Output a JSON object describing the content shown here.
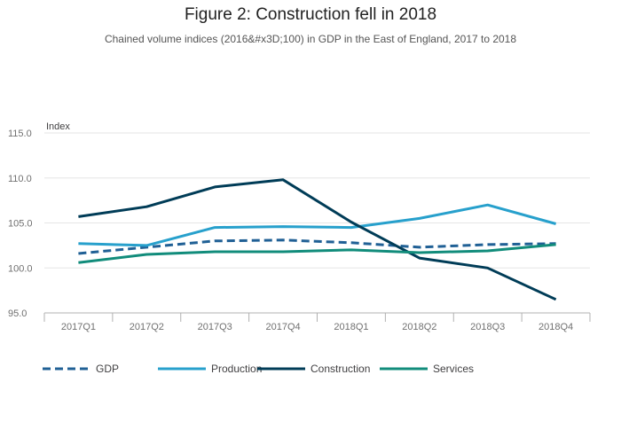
{
  "chart_data": {
    "type": "line",
    "title": "Figure 2: Construction fell in 2018",
    "subtitle": "Chained volume indices (2016&#x3D;100) in GDP in the East of England, 2017 to 2018",
    "ylabel": "Index",
    "xlabel": "",
    "categories": [
      "2017Q1",
      "2017Q2",
      "2017Q3",
      "2017Q4",
      "2018Q1",
      "2018Q2",
      "2018Q3",
      "2018Q4"
    ],
    "ylim": [
      95,
      115
    ],
    "yticks": [
      "95.0",
      "100.0",
      "105.0",
      "110.0",
      "115.0"
    ],
    "grid": true,
    "legend_position": "bottom",
    "series": [
      {
        "name": "GDP",
        "color": "#206095",
        "dashed": true,
        "values": [
          101.6,
          102.3,
          103.0,
          103.1,
          102.8,
          102.3,
          102.6,
          102.7
        ]
      },
      {
        "name": "Production",
        "color": "#27a0cc",
        "dashed": false,
        "values": [
          102.7,
          102.5,
          104.5,
          104.6,
          104.5,
          105.5,
          107.0,
          104.9
        ]
      },
      {
        "name": "Construction",
        "color": "#003c57",
        "dashed": false,
        "values": [
          105.7,
          106.8,
          109.0,
          109.8,
          105.1,
          101.1,
          100.0,
          96.5
        ]
      },
      {
        "name": "Services",
        "color": "#118c7b",
        "dashed": false,
        "values": [
          100.6,
          101.5,
          101.8,
          101.8,
          102.0,
          101.7,
          101.9,
          102.6
        ]
      }
    ]
  }
}
